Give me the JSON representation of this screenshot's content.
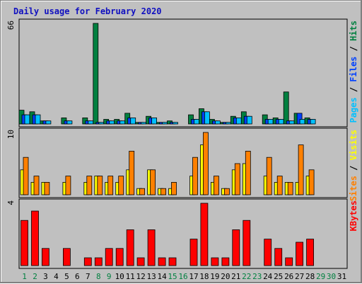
{
  "title": "Daily usage for February 2020",
  "chart_data": {
    "type": "bar",
    "title": "Daily usage for February 2020",
    "days": [
      "1",
      "2",
      "3",
      "4",
      "5",
      "6",
      "7",
      "8",
      "9",
      "10",
      "11",
      "12",
      "13",
      "14",
      "15",
      "16",
      "17",
      "18",
      "19",
      "20",
      "21",
      "22",
      "23",
      "24",
      "25",
      "26",
      "27",
      "28",
      "29",
      "30",
      "31"
    ],
    "weekend_days": [
      "1",
      "2",
      "8",
      "9",
      "15",
      "16",
      "22",
      "23",
      "29",
      "30"
    ],
    "colors": {
      "hits": "#008040",
      "files": "#0040ff",
      "pages": "#00c0ff",
      "visits": "#ffff00",
      "sites": "#ff8000",
      "kbytes": "#ff0000",
      "weekday_label": "#000000",
      "weekend_label": "#008040"
    },
    "panels": [
      {
        "id": "top",
        "max_label": "66",
        "ylim": [
          0,
          66
        ],
        "axis_label_parts": [
          {
            "text": "Pages",
            "color": "#00c0ff"
          },
          {
            "text": " / ",
            "color": "#000000"
          },
          {
            "text": "Files",
            "color": "#0040ff"
          },
          {
            "text": " / ",
            "color": "#000000"
          },
          {
            "text": "Hits",
            "color": "#008040"
          }
        ],
        "series": [
          {
            "name": "Hits",
            "color": "#008040",
            "values": [
              9,
              8,
              2,
              0,
              4,
              0,
              4,
              66,
              3,
              3,
              7,
              1,
              5,
              1,
              2,
              0,
              6,
              10,
              3,
              1,
              5,
              8,
              0,
              6,
              4,
              21,
              7,
              4,
              0,
              0,
              0
            ]
          },
          {
            "name": "Files",
            "color": "#0040ff",
            "values": [
              6,
              6,
              2,
              0,
              2,
              0,
              2,
              1,
              2,
              2,
              4,
              1,
              4,
              1,
              1,
              0,
              3,
              8,
              2,
              1,
              4,
              5,
              0,
              3,
              3,
              2,
              7,
              3,
              0,
              0,
              0
            ]
          },
          {
            "name": "Pages",
            "color": "#00c0ff",
            "values": [
              6,
              6,
              2,
              0,
              2,
              0,
              2,
              1,
              2,
              2,
              4,
              1,
              4,
              1,
              1,
              0,
              3,
              8,
              2,
              1,
              4,
              5,
              0,
              3,
              3,
              2,
              3,
              3,
              0,
              0,
              0
            ]
          }
        ]
      },
      {
        "id": "middle",
        "max_label": "10",
        "ylim": [
          0,
          10
        ],
        "axis_label_parts": [
          {
            "text": "Sites",
            "color": "#ff8000"
          },
          {
            "text": " / ",
            "color": "#000000"
          },
          {
            "text": "Visits",
            "color": "#ffff00"
          }
        ],
        "series": [
          {
            "name": "Visits",
            "color": "#ffff00",
            "values": [
              4,
              2,
              2,
              0,
              2,
              0,
              2,
              3,
              2,
              2,
              4,
              1,
              4,
              1,
              1,
              0,
              3,
              8,
              2,
              1,
              4,
              5,
              0,
              3,
              2,
              2,
              2,
              3,
              0,
              0,
              0
            ]
          },
          {
            "name": "Sites",
            "color": "#ff8000",
            "values": [
              6,
              3,
              2,
              0,
              3,
              0,
              3,
              3,
              3,
              3,
              7,
              1,
              4,
              1,
              2,
              0,
              6,
              10,
              3,
              1,
              5,
              7,
              0,
              6,
              3,
              2,
              8,
              4,
              0,
              0,
              0
            ]
          }
        ]
      },
      {
        "id": "bottom",
        "max_label": "4",
        "ylim": [
          0,
          4
        ],
        "axis_label_parts": [
          {
            "text": "KBytes",
            "color": "#ff0000"
          }
        ],
        "series": [
          {
            "name": "KBytes",
            "color": "#ff0000",
            "values": [
              2.9,
              3.5,
              1.1,
              0,
              1.1,
              0,
              0.5,
              0.5,
              1.1,
              1.1,
              2.3,
              0.5,
              2.3,
              0.5,
              0.5,
              0,
              1.7,
              4,
              0.5,
              0.5,
              2.3,
              2.9,
              0,
              1.7,
              1.1,
              0.5,
              1.5,
              1.7,
              0,
              0,
              0
            ]
          }
        ]
      }
    ]
  }
}
